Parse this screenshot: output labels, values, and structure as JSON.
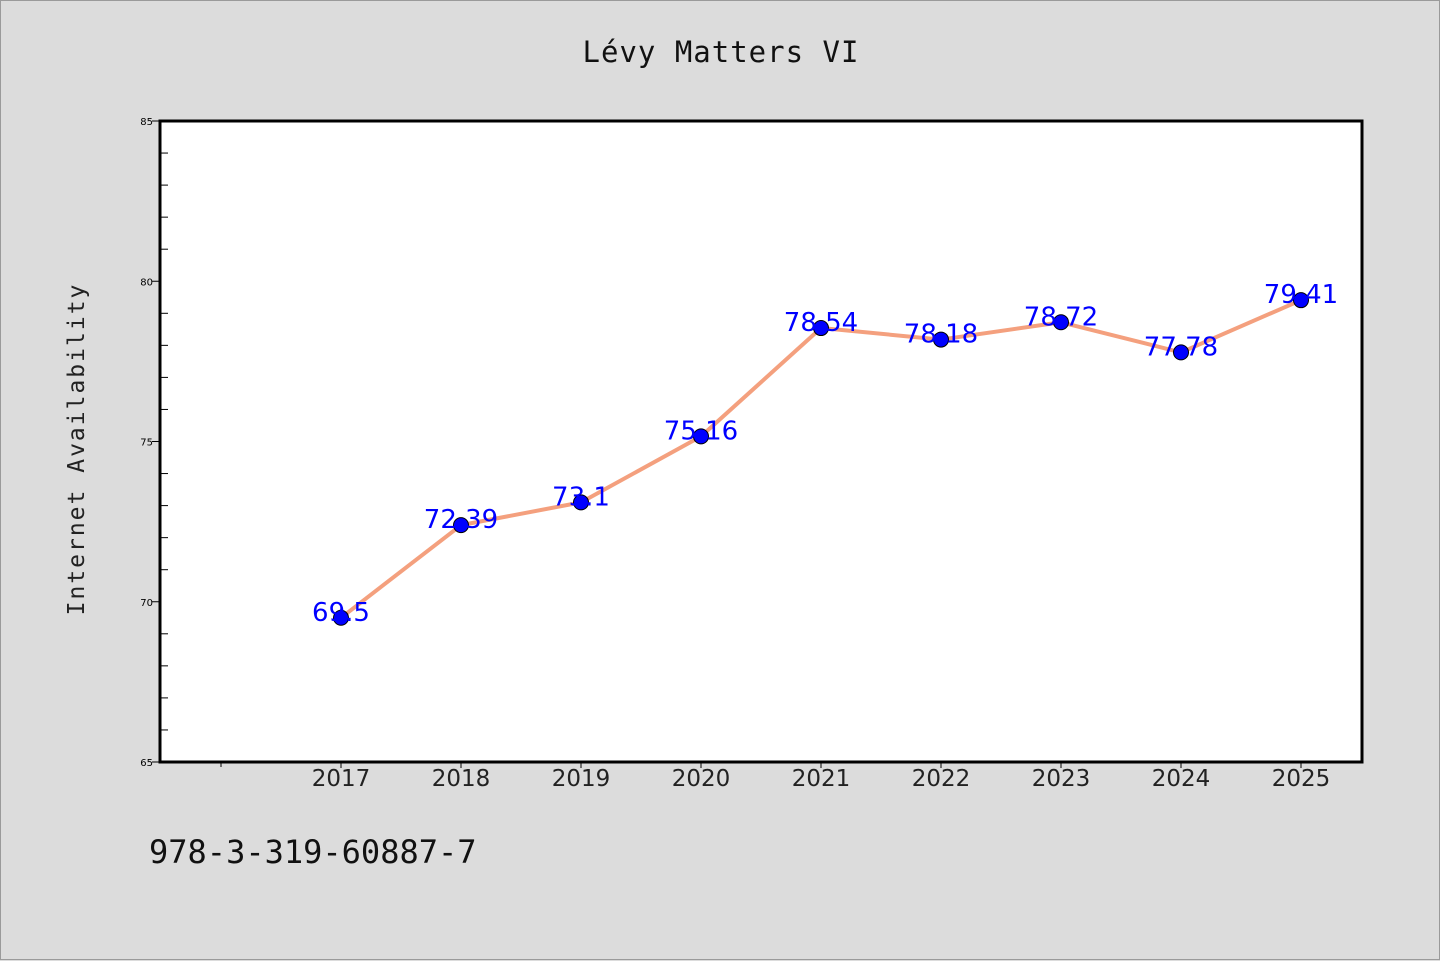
{
  "chart_data": {
    "type": "line",
    "title": "Lévy Matters VI",
    "xlabel": "",
    "ylabel": "Internet Availability",
    "categories": [
      "2017",
      "2018",
      "2019",
      "2020",
      "2021",
      "2022",
      "2023",
      "2024",
      "2025"
    ],
    "series": [
      {
        "values": [
          69.5,
          72.39,
          73.1,
          75.16,
          78.54,
          78.18,
          78.72,
          77.78,
          79.41
        ],
        "data_labels": [
          "69.5",
          "72.39",
          "73.1",
          "75.16",
          "78.54",
          "78.18",
          "78.72",
          "77.78",
          "79.41"
        ],
        "line_color": "#f4a07e",
        "marker_color": "#0000ff"
      }
    ],
    "ylim": [
      65,
      85
    ],
    "yticks": [
      "65",
      "70",
      "75",
      "80",
      "85"
    ],
    "grid": false,
    "legend": "none"
  },
  "footer_code": "978-3-319-60887-7"
}
